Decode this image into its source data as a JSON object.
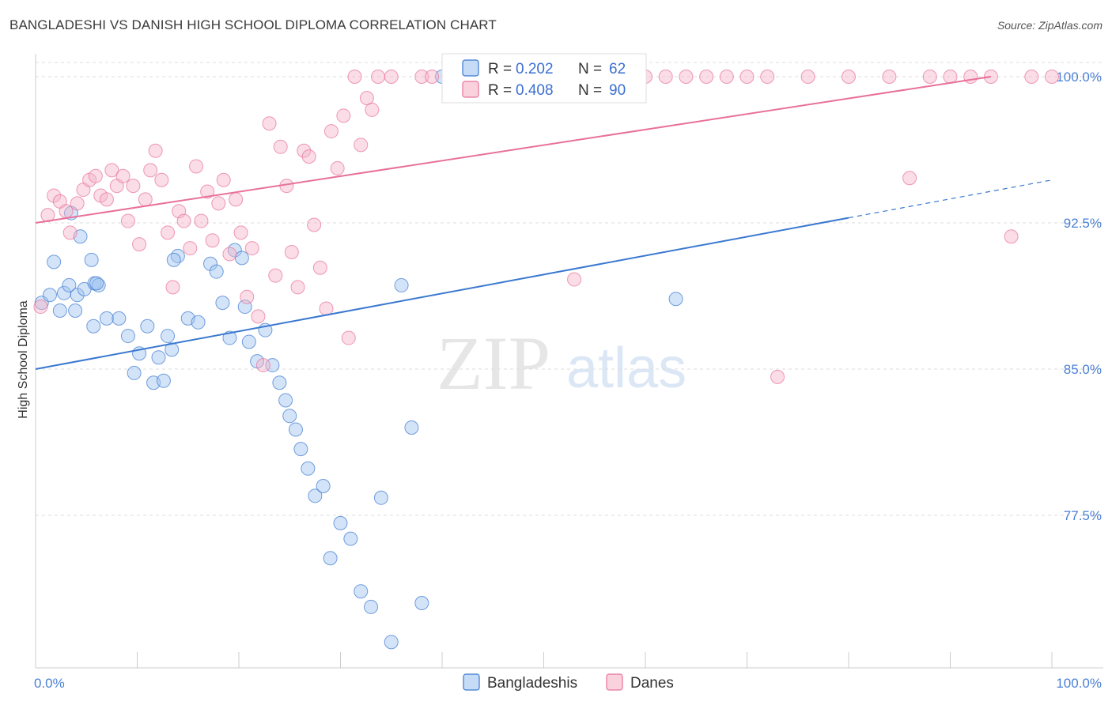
{
  "title": "BANGLADESHI VS DANISH HIGH SCHOOL DIPLOMA CORRELATION CHART",
  "source": "Source: ZipAtlas.com",
  "watermark": {
    "part1": "ZIP",
    "part2": "atlas"
  },
  "colors": {
    "blue": "#3a78d0",
    "blue_fill": "rgba(160,195,240,0.45)",
    "pink": "#e8709a",
    "pink_fill": "rgba(245,180,200,0.45)",
    "grid": "#dddddd",
    "tick_label": "#4a7fd4"
  },
  "legend": {
    "r_label": "R =",
    "n_label": "N =",
    "rows": [
      {
        "r": "0.202",
        "n": "62"
      },
      {
        "r": "0.408",
        "n": "90"
      }
    ]
  },
  "bottom_legend": [
    "Bangladeshis",
    "Danes"
  ],
  "chart_data": {
    "type": "scatter",
    "title": "BANGLADESHI VS DANISH HIGH SCHOOL DIPLOMA CORRELATION CHART",
    "xlabel": "",
    "ylabel": "High School Diploma",
    "xlim": [
      0,
      100
    ],
    "ylim": [
      70.5,
      100.7
    ],
    "x_tick_labels": [
      "0.0%",
      "100.0%"
    ],
    "y_ticks": [
      77.5,
      85.0,
      92.5,
      100.0
    ],
    "y_tick_labels": [
      "77.5%",
      "85.0%",
      "92.5%",
      "100.0%"
    ],
    "grid": "horizontal dashed",
    "legend_placement": "top-center",
    "series": [
      {
        "name": "Bangladeshis",
        "r": 0.202,
        "n": 62,
        "trend": {
          "x0": 0,
          "y0": 85.0,
          "x1": 100,
          "y1": 94.7,
          "solid_until_x": 80
        },
        "points": [
          [
            0.6,
            88.4
          ],
          [
            1.4,
            88.8
          ],
          [
            1.8,
            90.5
          ],
          [
            2.4,
            88.0
          ],
          [
            2.8,
            88.9
          ],
          [
            3.3,
            89.3
          ],
          [
            3.9,
            88.0
          ],
          [
            4.1,
            88.8
          ],
          [
            4.4,
            91.8
          ],
          [
            3.5,
            93.0
          ],
          [
            4.8,
            89.1
          ],
          [
            5.5,
            90.6
          ],
          [
            5.8,
            89.4
          ],
          [
            6.2,
            89.3
          ],
          [
            6.0,
            89.4
          ],
          [
            5.7,
            87.2
          ],
          [
            7.0,
            87.6
          ],
          [
            8.2,
            87.6
          ],
          [
            9.1,
            86.7
          ],
          [
            9.7,
            84.8
          ],
          [
            10.2,
            85.8
          ],
          [
            11.0,
            87.2
          ],
          [
            11.6,
            84.3
          ],
          [
            12.1,
            85.6
          ],
          [
            12.6,
            84.4
          ],
          [
            13.4,
            86.0
          ],
          [
            13.0,
            86.7
          ],
          [
            14.0,
            90.8
          ],
          [
            13.6,
            90.6
          ],
          [
            15.0,
            87.6
          ],
          [
            16.0,
            87.4
          ],
          [
            17.2,
            90.4
          ],
          [
            17.8,
            90.0
          ],
          [
            18.4,
            88.4
          ],
          [
            19.1,
            86.6
          ],
          [
            19.6,
            91.1
          ],
          [
            20.3,
            90.7
          ],
          [
            20.6,
            88.2
          ],
          [
            21.0,
            86.4
          ],
          [
            21.8,
            85.4
          ],
          [
            22.6,
            87.0
          ],
          [
            23.3,
            85.2
          ],
          [
            24.0,
            84.3
          ],
          [
            24.6,
            83.4
          ],
          [
            25.0,
            82.6
          ],
          [
            25.6,
            81.9
          ],
          [
            26.1,
            80.9
          ],
          [
            26.8,
            79.9
          ],
          [
            27.5,
            78.5
          ],
          [
            28.3,
            79.0
          ],
          [
            29.0,
            75.3
          ],
          [
            30.0,
            77.1
          ],
          [
            31.0,
            76.3
          ],
          [
            32.0,
            73.6
          ],
          [
            33.0,
            72.8
          ],
          [
            34.0,
            78.4
          ],
          [
            35.0,
            71.0
          ],
          [
            36.0,
            89.3
          ],
          [
            37.0,
            82.0
          ],
          [
            38.0,
            73.0
          ],
          [
            40.0,
            100.0
          ],
          [
            63.0,
            88.6
          ]
        ]
      },
      {
        "name": "Danes",
        "r": 0.408,
        "n": 90,
        "trend": {
          "x0": 0,
          "y0": 92.5,
          "x1": 94,
          "y1": 100.0
        },
        "points": [
          [
            0.5,
            88.2
          ],
          [
            1.2,
            92.9
          ],
          [
            1.8,
            93.9
          ],
          [
            2.4,
            93.6
          ],
          [
            3.0,
            93.1
          ],
          [
            3.4,
            92.0
          ],
          [
            4.1,
            93.5
          ],
          [
            4.7,
            94.2
          ],
          [
            5.3,
            94.7
          ],
          [
            5.9,
            94.9
          ],
          [
            6.4,
            93.9
          ],
          [
            7.0,
            93.7
          ],
          [
            7.5,
            95.2
          ],
          [
            8.0,
            94.4
          ],
          [
            8.6,
            94.9
          ],
          [
            9.1,
            92.6
          ],
          [
            9.6,
            94.4
          ],
          [
            10.2,
            91.4
          ],
          [
            10.8,
            93.7
          ],
          [
            11.3,
            95.2
          ],
          [
            11.8,
            96.2
          ],
          [
            12.4,
            94.7
          ],
          [
            13.0,
            92.0
          ],
          [
            13.5,
            89.2
          ],
          [
            14.1,
            93.1
          ],
          [
            14.6,
            92.6
          ],
          [
            15.2,
            91.2
          ],
          [
            15.8,
            95.4
          ],
          [
            16.3,
            92.6
          ],
          [
            16.9,
            94.1
          ],
          [
            17.4,
            91.6
          ],
          [
            18.0,
            93.5
          ],
          [
            18.5,
            94.7
          ],
          [
            19.1,
            90.9
          ],
          [
            19.7,
            93.7
          ],
          [
            20.2,
            92.0
          ],
          [
            20.8,
            88.7
          ],
          [
            21.3,
            91.2
          ],
          [
            21.9,
            87.7
          ],
          [
            22.4,
            85.2
          ],
          [
            23.0,
            97.6
          ],
          [
            23.6,
            89.8
          ],
          [
            24.1,
            96.4
          ],
          [
            24.7,
            94.4
          ],
          [
            25.2,
            91.0
          ],
          [
            25.8,
            89.2
          ],
          [
            26.4,
            96.2
          ],
          [
            26.9,
            95.9
          ],
          [
            27.4,
            92.4
          ],
          [
            28.0,
            90.2
          ],
          [
            28.6,
            88.1
          ],
          [
            29.1,
            97.2
          ],
          [
            29.7,
            95.3
          ],
          [
            30.3,
            98.0
          ],
          [
            30.8,
            86.6
          ],
          [
            31.4,
            100.0
          ],
          [
            32.0,
            96.5
          ],
          [
            32.6,
            98.9
          ],
          [
            33.1,
            98.3
          ],
          [
            33.7,
            100.0
          ],
          [
            35.0,
            100.0
          ],
          [
            38.0,
            100.0
          ],
          [
            39.0,
            100.0
          ],
          [
            42.0,
            100.0
          ],
          [
            45.0,
            100.0
          ],
          [
            48.0,
            100.0
          ],
          [
            50.0,
            100.0
          ],
          [
            52.0,
            100.0
          ],
          [
            55.0,
            100.0
          ],
          [
            58.0,
            100.0
          ],
          [
            60.0,
            100.0
          ],
          [
            62.0,
            100.0
          ],
          [
            64.0,
            100.0
          ],
          [
            66.0,
            100.0
          ],
          [
            68.0,
            100.0
          ],
          [
            70.0,
            100.0
          ],
          [
            72.0,
            100.0
          ],
          [
            73.0,
            84.6
          ],
          [
            76.0,
            100.0
          ],
          [
            80.0,
            100.0
          ],
          [
            84.0,
            100.0
          ],
          [
            86.0,
            94.8
          ],
          [
            88.0,
            100.0
          ],
          [
            90.0,
            100.0
          ],
          [
            92.0,
            100.0
          ],
          [
            94.0,
            100.0
          ],
          [
            96.0,
            91.8
          ],
          [
            98.0,
            100.0
          ],
          [
            100.0,
            100.0
          ],
          [
            53.0,
            89.6
          ]
        ]
      }
    ]
  }
}
